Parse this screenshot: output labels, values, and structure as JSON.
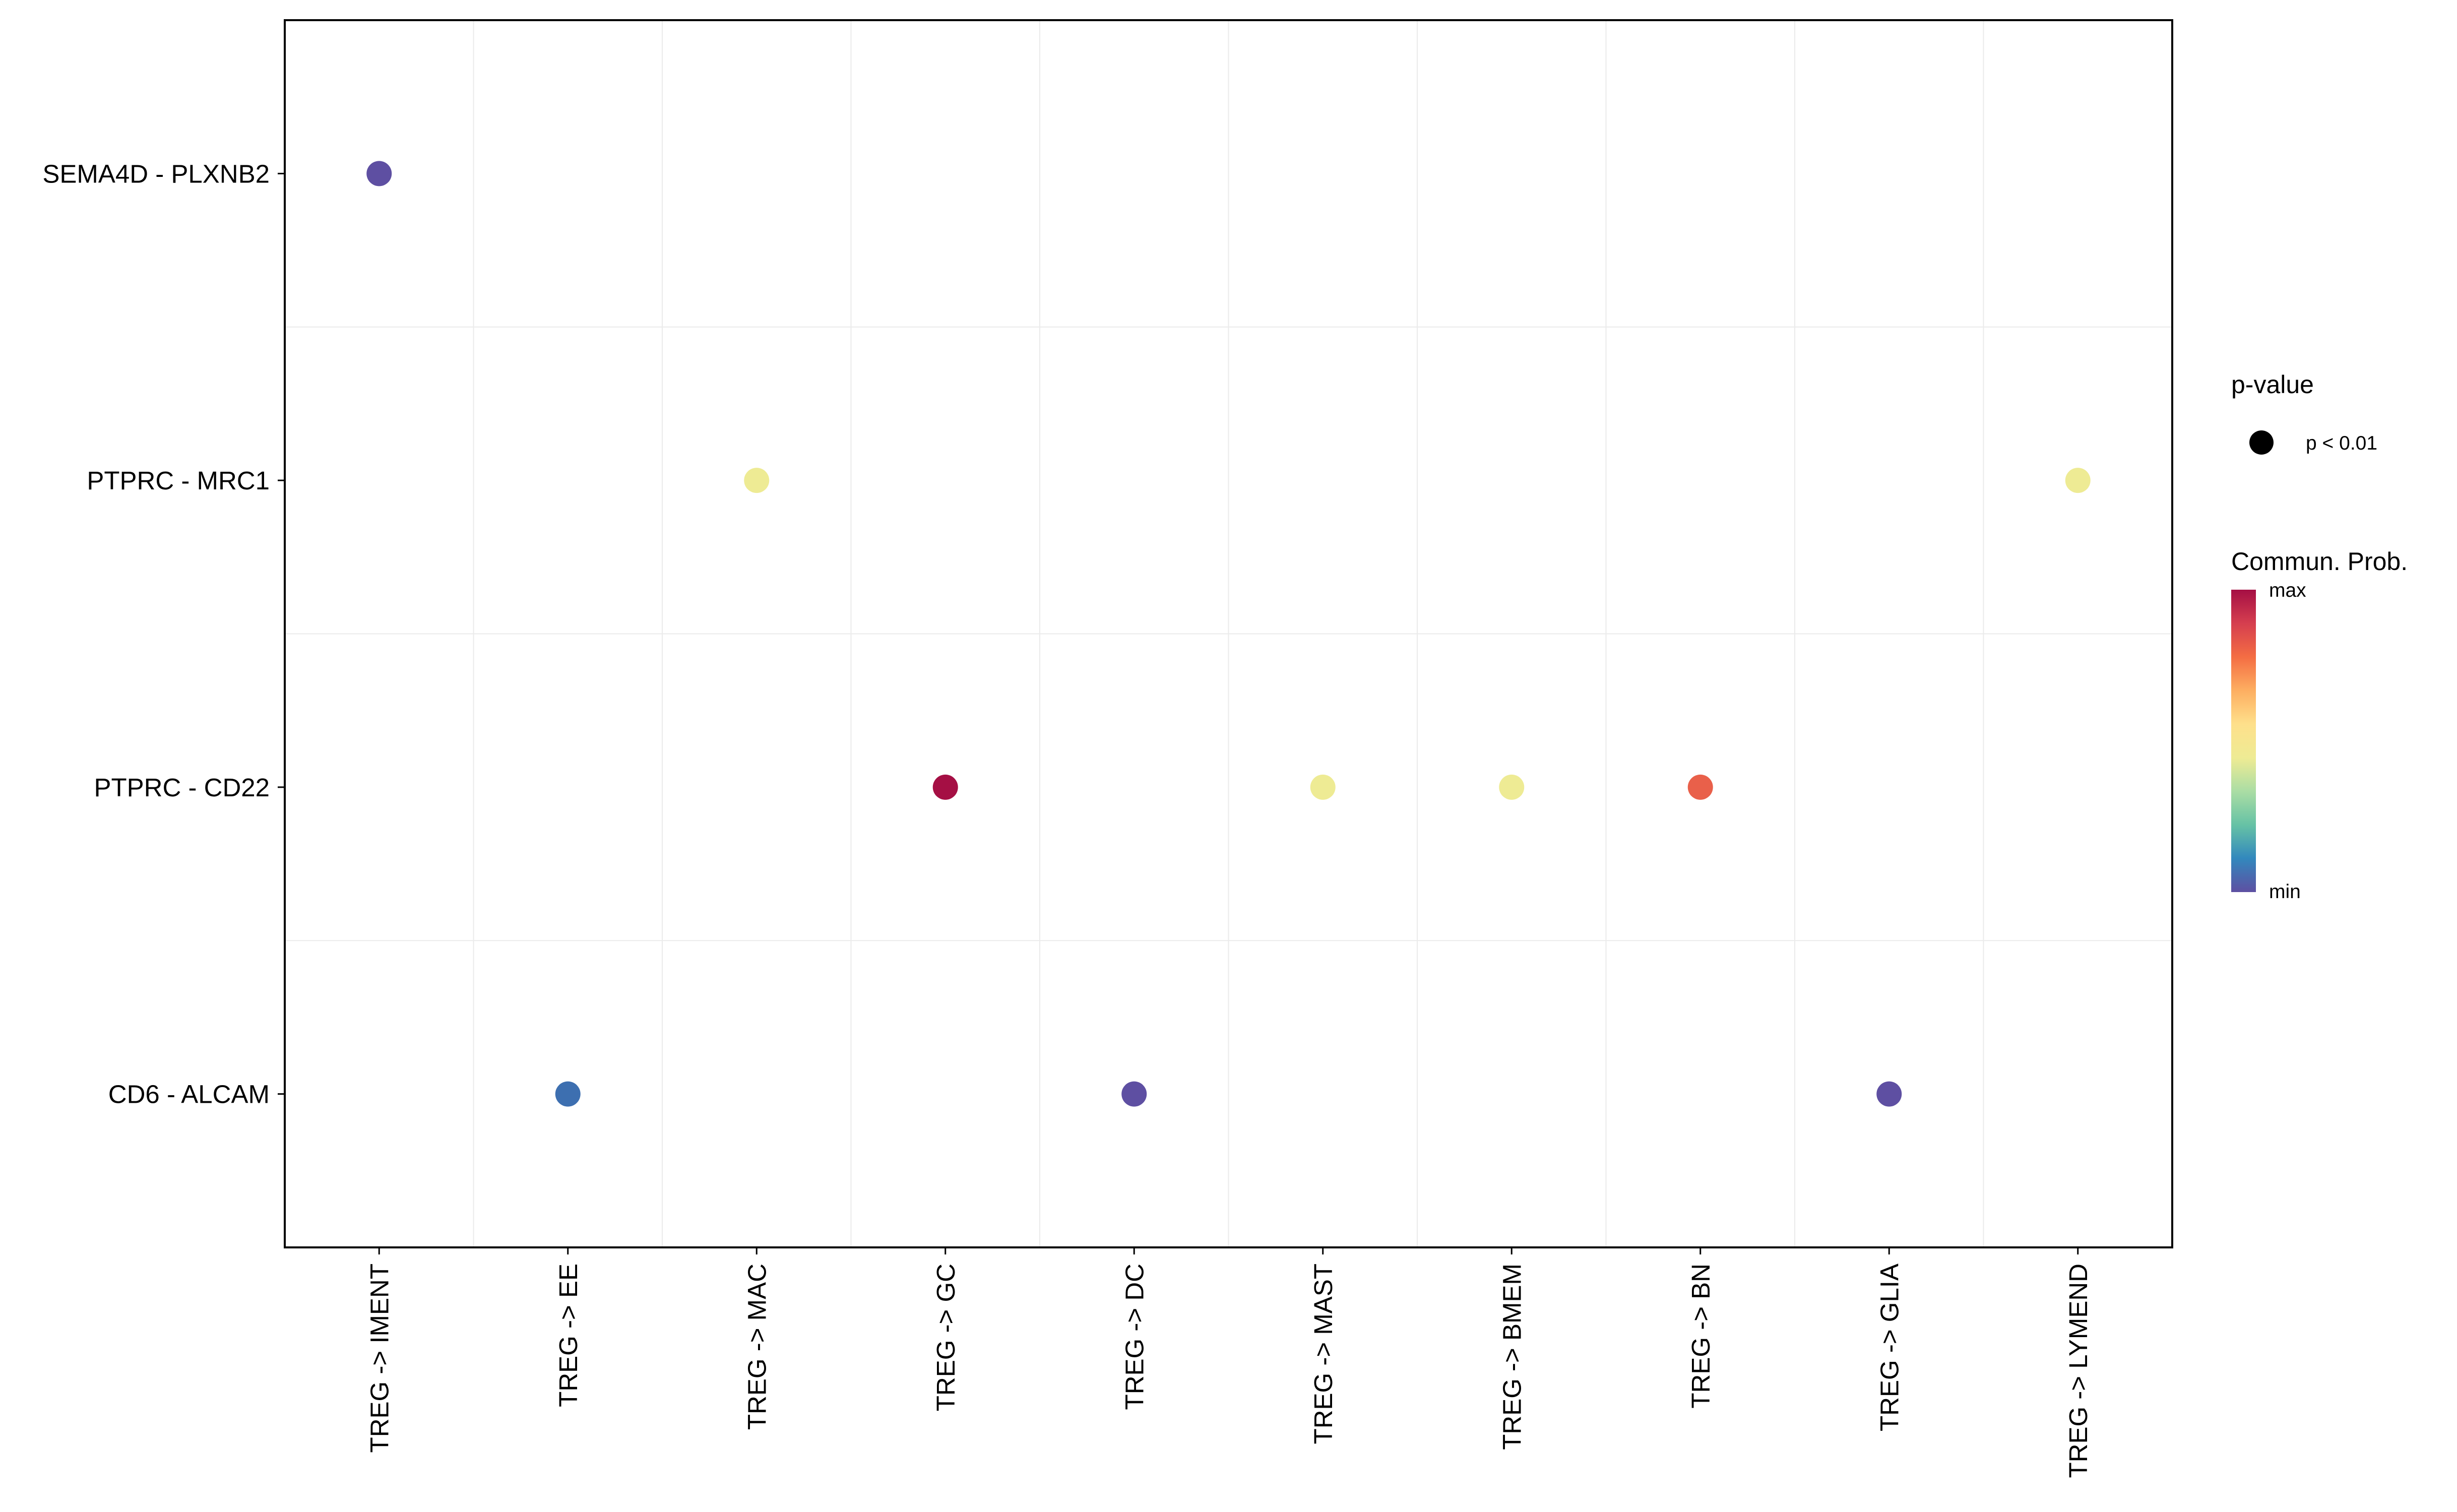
{
  "chart_data": {
    "type": "scatter",
    "x_categories": [
      "TREG -> IMENT",
      "TREG -> EE",
      "TREG -> MAC",
      "TREG -> GC",
      "TREG -> DC",
      "TREG -> MAST",
      "TREG -> BMEM",
      "TREG -> BN",
      "TREG -> GLIA",
      "TREG -> LYMEND"
    ],
    "y_categories": [
      "SEMA4D - PLXNB2",
      "PTPRC - MRC1",
      "PTPRC - CD22",
      "CD6 - ALCAM"
    ],
    "points": [
      {
        "x": "TREG -> IMENT",
        "y": "SEMA4D - PLXNB2",
        "prob": 0.0,
        "color": "#5e4fa2"
      },
      {
        "x": "TREG -> MAC",
        "y": "PTPRC - MRC1",
        "prob": 0.55,
        "color": "#eeeb94"
      },
      {
        "x": "TREG -> LYMEND",
        "y": "PTPRC - MRC1",
        "prob": 0.55,
        "color": "#eeeb94"
      },
      {
        "x": "TREG -> GC",
        "y": "PTPRC - CD22",
        "prob": 1.0,
        "color": "#a50f44"
      },
      {
        "x": "TREG -> MAST",
        "y": "PTPRC - CD22",
        "prob": 0.55,
        "color": "#eeeb94"
      },
      {
        "x": "TREG -> BMEM",
        "y": "PTPRC - CD22",
        "prob": 0.55,
        "color": "#eeeb94"
      },
      {
        "x": "TREG -> BN",
        "y": "PTPRC - CD22",
        "prob": 0.85,
        "color": "#e9604a"
      },
      {
        "x": "TREG -> EE",
        "y": "CD6 - ALCAM",
        "prob": 0.08,
        "color": "#3d6fb0"
      },
      {
        "x": "TREG -> DC",
        "y": "CD6 - ALCAM",
        "prob": 0.0,
        "color": "#5e4fa2"
      },
      {
        "x": "TREG -> GLIA",
        "y": "CD6 - ALCAM",
        "prob": 0.0,
        "color": "#5e4fa2"
      }
    ],
    "legend_pvalue": {
      "title": "p-value",
      "entries": [
        {
          "label": "p < 0.01",
          "color": "#000000"
        }
      ]
    },
    "legend_colorbar": {
      "title": "Commun. Prob.",
      "max_label": "max",
      "min_label": "min",
      "colors": [
        "#a50f44",
        "#d53e4f",
        "#f46d43",
        "#fdae61",
        "#fee08b",
        "#eeeb94",
        "#abdda4",
        "#66c2a5",
        "#3288bd",
        "#5e4fa2"
      ]
    },
    "grid": true,
    "legend_position": "right"
  }
}
